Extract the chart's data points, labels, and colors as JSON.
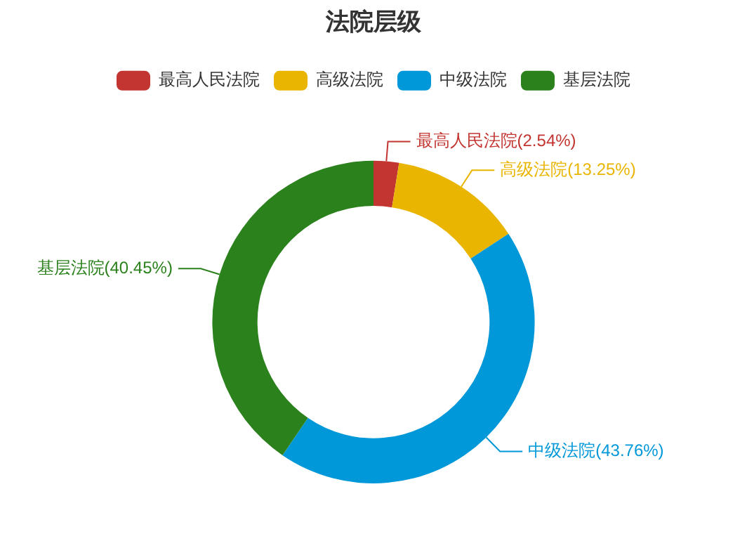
{
  "chart_data": {
    "type": "donut",
    "title": "法院层级",
    "categories": [
      "最高人民法院",
      "高级法院",
      "中级法院",
      "基层法院"
    ],
    "values": [
      2.54,
      13.25,
      43.76,
      40.45
    ],
    "colors": [
      "#c23531",
      "#e9b500",
      "#0098d9",
      "#2b821d"
    ],
    "value_labels": [
      "最高人民法院(2.54%)",
      "高级法院(13.25%)",
      "中级法院(43.76%)",
      "基层法院(40.45%)"
    ],
    "legend": "top"
  }
}
